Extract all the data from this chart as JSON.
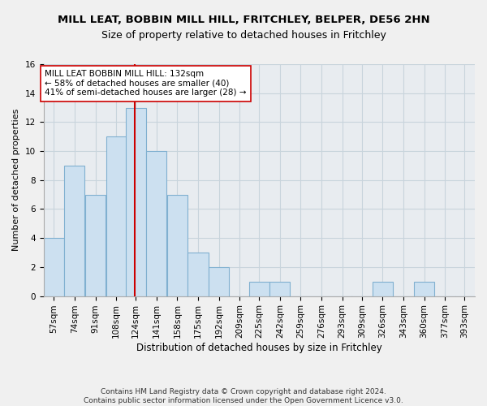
{
  "title1": "MILL LEAT, BOBBIN MILL HILL, FRITCHLEY, BELPER, DE56 2HN",
  "title2": "Size of property relative to detached houses in Fritchley",
  "xlabel": "Distribution of detached houses by size in Fritchley",
  "ylabel": "Number of detached properties",
  "bin_labels": [
    "57sqm",
    "74sqm",
    "91sqm",
    "108sqm",
    "124sqm",
    "141sqm",
    "158sqm",
    "175sqm",
    "192sqm",
    "209sqm",
    "225sqm",
    "242sqm",
    "259sqm",
    "276sqm",
    "293sqm",
    "309sqm",
    "326sqm",
    "343sqm",
    "360sqm",
    "377sqm",
    "393sqm"
  ],
  "bin_edges": [
    57,
    74,
    91,
    108,
    124,
    141,
    158,
    175,
    192,
    209,
    225,
    242,
    259,
    276,
    293,
    309,
    326,
    343,
    360,
    377,
    393
  ],
  "bar_heights": [
    4,
    9,
    7,
    11,
    13,
    10,
    7,
    3,
    2,
    0,
    1,
    1,
    0,
    0,
    0,
    0,
    1,
    0,
    1,
    0,
    0
  ],
  "bar_color": "#cce0f0",
  "bar_edgecolor": "#80b0d0",
  "grid_color": "#c8d4dc",
  "bg_color": "#e8ecf0",
  "fig_color": "#f0f0f0",
  "property_size": 132,
  "vline_color": "#cc0000",
  "annotation_text": "MILL LEAT BOBBIN MILL HILL: 132sqm\n← 58% of detached houses are smaller (40)\n41% of semi-detached houses are larger (28) →",
  "annotation_box_color": "#ffffff",
  "annotation_box_edgecolor": "#cc0000",
  "ylim": [
    0,
    16
  ],
  "yticks": [
    0,
    2,
    4,
    6,
    8,
    10,
    12,
    14,
    16
  ],
  "footer": "Contains HM Land Registry data © Crown copyright and database right 2024.\nContains public sector information licensed under the Open Government Licence v3.0.",
  "title1_fontsize": 9.5,
  "title2_fontsize": 9,
  "xlabel_fontsize": 8.5,
  "ylabel_fontsize": 8,
  "tick_fontsize": 7.5,
  "annotation_fontsize": 7.5,
  "footer_fontsize": 6.5
}
